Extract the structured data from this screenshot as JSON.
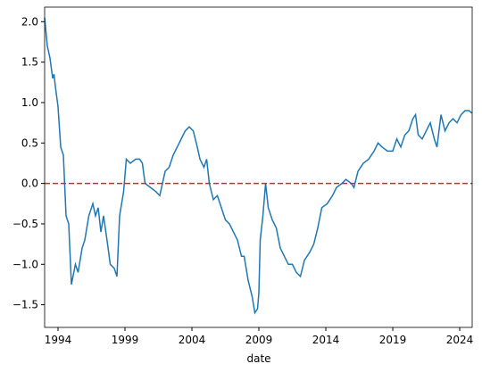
{
  "chart_data": {
    "type": "line",
    "xlabel": "date",
    "x": [
      1993.0,
      1993.2,
      1993.4,
      1993.6,
      1993.7,
      1993.8,
      1994.0,
      1994.2,
      1994.4,
      1994.6,
      1994.8,
      1995.0,
      1995.3,
      1995.5,
      1995.8,
      1996.0,
      1996.3,
      1996.6,
      1996.8,
      1997.0,
      1997.2,
      1997.4,
      1997.7,
      1997.9,
      1998.2,
      1998.4,
      1998.6,
      1998.9,
      1999.1,
      1999.4,
      1999.8,
      2000.1,
      2000.3,
      2000.5,
      2000.9,
      2001.3,
      2001.6,
      2002.0,
      2002.3,
      2002.6,
      2002.9,
      2003.2,
      2003.5,
      2003.8,
      2004.1,
      2004.4,
      2004.6,
      2004.9,
      2005.1,
      2005.3,
      2005.6,
      2005.9,
      2006.2,
      2006.5,
      2006.8,
      2007.1,
      2007.4,
      2007.7,
      2007.9,
      2008.2,
      2008.5,
      2008.7,
      2008.9,
      2009.0,
      2009.1,
      2009.3,
      2009.5,
      2009.7,
      2010.0,
      2010.3,
      2010.6,
      2010.9,
      2011.2,
      2011.5,
      2011.8,
      2012.1,
      2012.4,
      2012.8,
      2013.1,
      2013.4,
      2013.7,
      2014.1,
      2014.5,
      2014.8,
      2015.2,
      2015.5,
      2015.9,
      2016.1,
      2016.4,
      2016.8,
      2017.2,
      2017.6,
      2017.9,
      2018.2,
      2018.6,
      2019.0,
      2019.3,
      2019.6,
      2019.9,
      2020.2,
      2020.5,
      2020.7,
      2020.9,
      2021.2,
      2021.5,
      2021.8,
      2022.1,
      2022.3,
      2022.6,
      2022.9,
      2023.2,
      2023.5,
      2023.8,
      2024.1,
      2024.4,
      2024.7,
      2024.9
    ],
    "values": [
      2.05,
      1.7,
      1.55,
      1.3,
      1.35,
      1.2,
      0.95,
      0.45,
      0.35,
      -0.4,
      -0.5,
      -1.25,
      -1.0,
      -1.1,
      -0.8,
      -0.7,
      -0.4,
      -0.25,
      -0.4,
      -0.3,
      -0.6,
      -0.4,
      -0.75,
      -1.0,
      -1.05,
      -1.15,
      -0.4,
      -0.1,
      0.3,
      0.25,
      0.3,
      0.3,
      0.25,
      0.0,
      -0.05,
      -0.1,
      -0.15,
      0.15,
      0.2,
      0.35,
      0.45,
      0.55,
      0.65,
      0.7,
      0.65,
      0.45,
      0.3,
      0.2,
      0.3,
      0.0,
      -0.2,
      -0.15,
      -0.3,
      -0.45,
      -0.5,
      -0.6,
      -0.7,
      -0.9,
      -0.9,
      -1.2,
      -1.4,
      -1.6,
      -1.55,
      -1.35,
      -0.7,
      -0.4,
      0.0,
      -0.3,
      -0.45,
      -0.55,
      -0.8,
      -0.9,
      -1.0,
      -1.0,
      -1.1,
      -1.15,
      -0.95,
      -0.85,
      -0.75,
      -0.55,
      -0.3,
      -0.25,
      -0.15,
      -0.05,
      0.0,
      0.05,
      0.0,
      -0.05,
      0.15,
      0.25,
      0.3,
      0.4,
      0.5,
      0.45,
      0.4,
      0.4,
      0.55,
      0.45,
      0.6,
      0.65,
      0.8,
      0.85,
      0.6,
      0.55,
      0.65,
      0.75,
      0.55,
      0.45,
      0.85,
      0.65,
      0.75,
      0.8,
      0.75,
      0.85,
      0.9,
      0.9,
      0.87
    ],
    "color": "#1f77b4",
    "xlim": [
      1993.0,
      2024.93
    ],
    "xticks": [
      1994,
      1999,
      2004,
      2009,
      2014,
      2019,
      2024
    ],
    "ylim": [
      -1.78,
      2.18
    ],
    "yticks": [
      {
        "value": -1.5,
        "label": "−1.5"
      },
      {
        "value": -1.0,
        "label": "−1.0"
      },
      {
        "value": -0.5,
        "label": "−0.5"
      },
      {
        "value": 0.0,
        "label": "0.0"
      },
      {
        "value": 0.5,
        "label": "0.5"
      },
      {
        "value": 1.0,
        "label": "1.0"
      },
      {
        "value": 1.5,
        "label": "1.5"
      },
      {
        "value": 2.0,
        "label": "2.0"
      }
    ],
    "hline": {
      "y": 0,
      "color": "#d62728"
    }
  }
}
